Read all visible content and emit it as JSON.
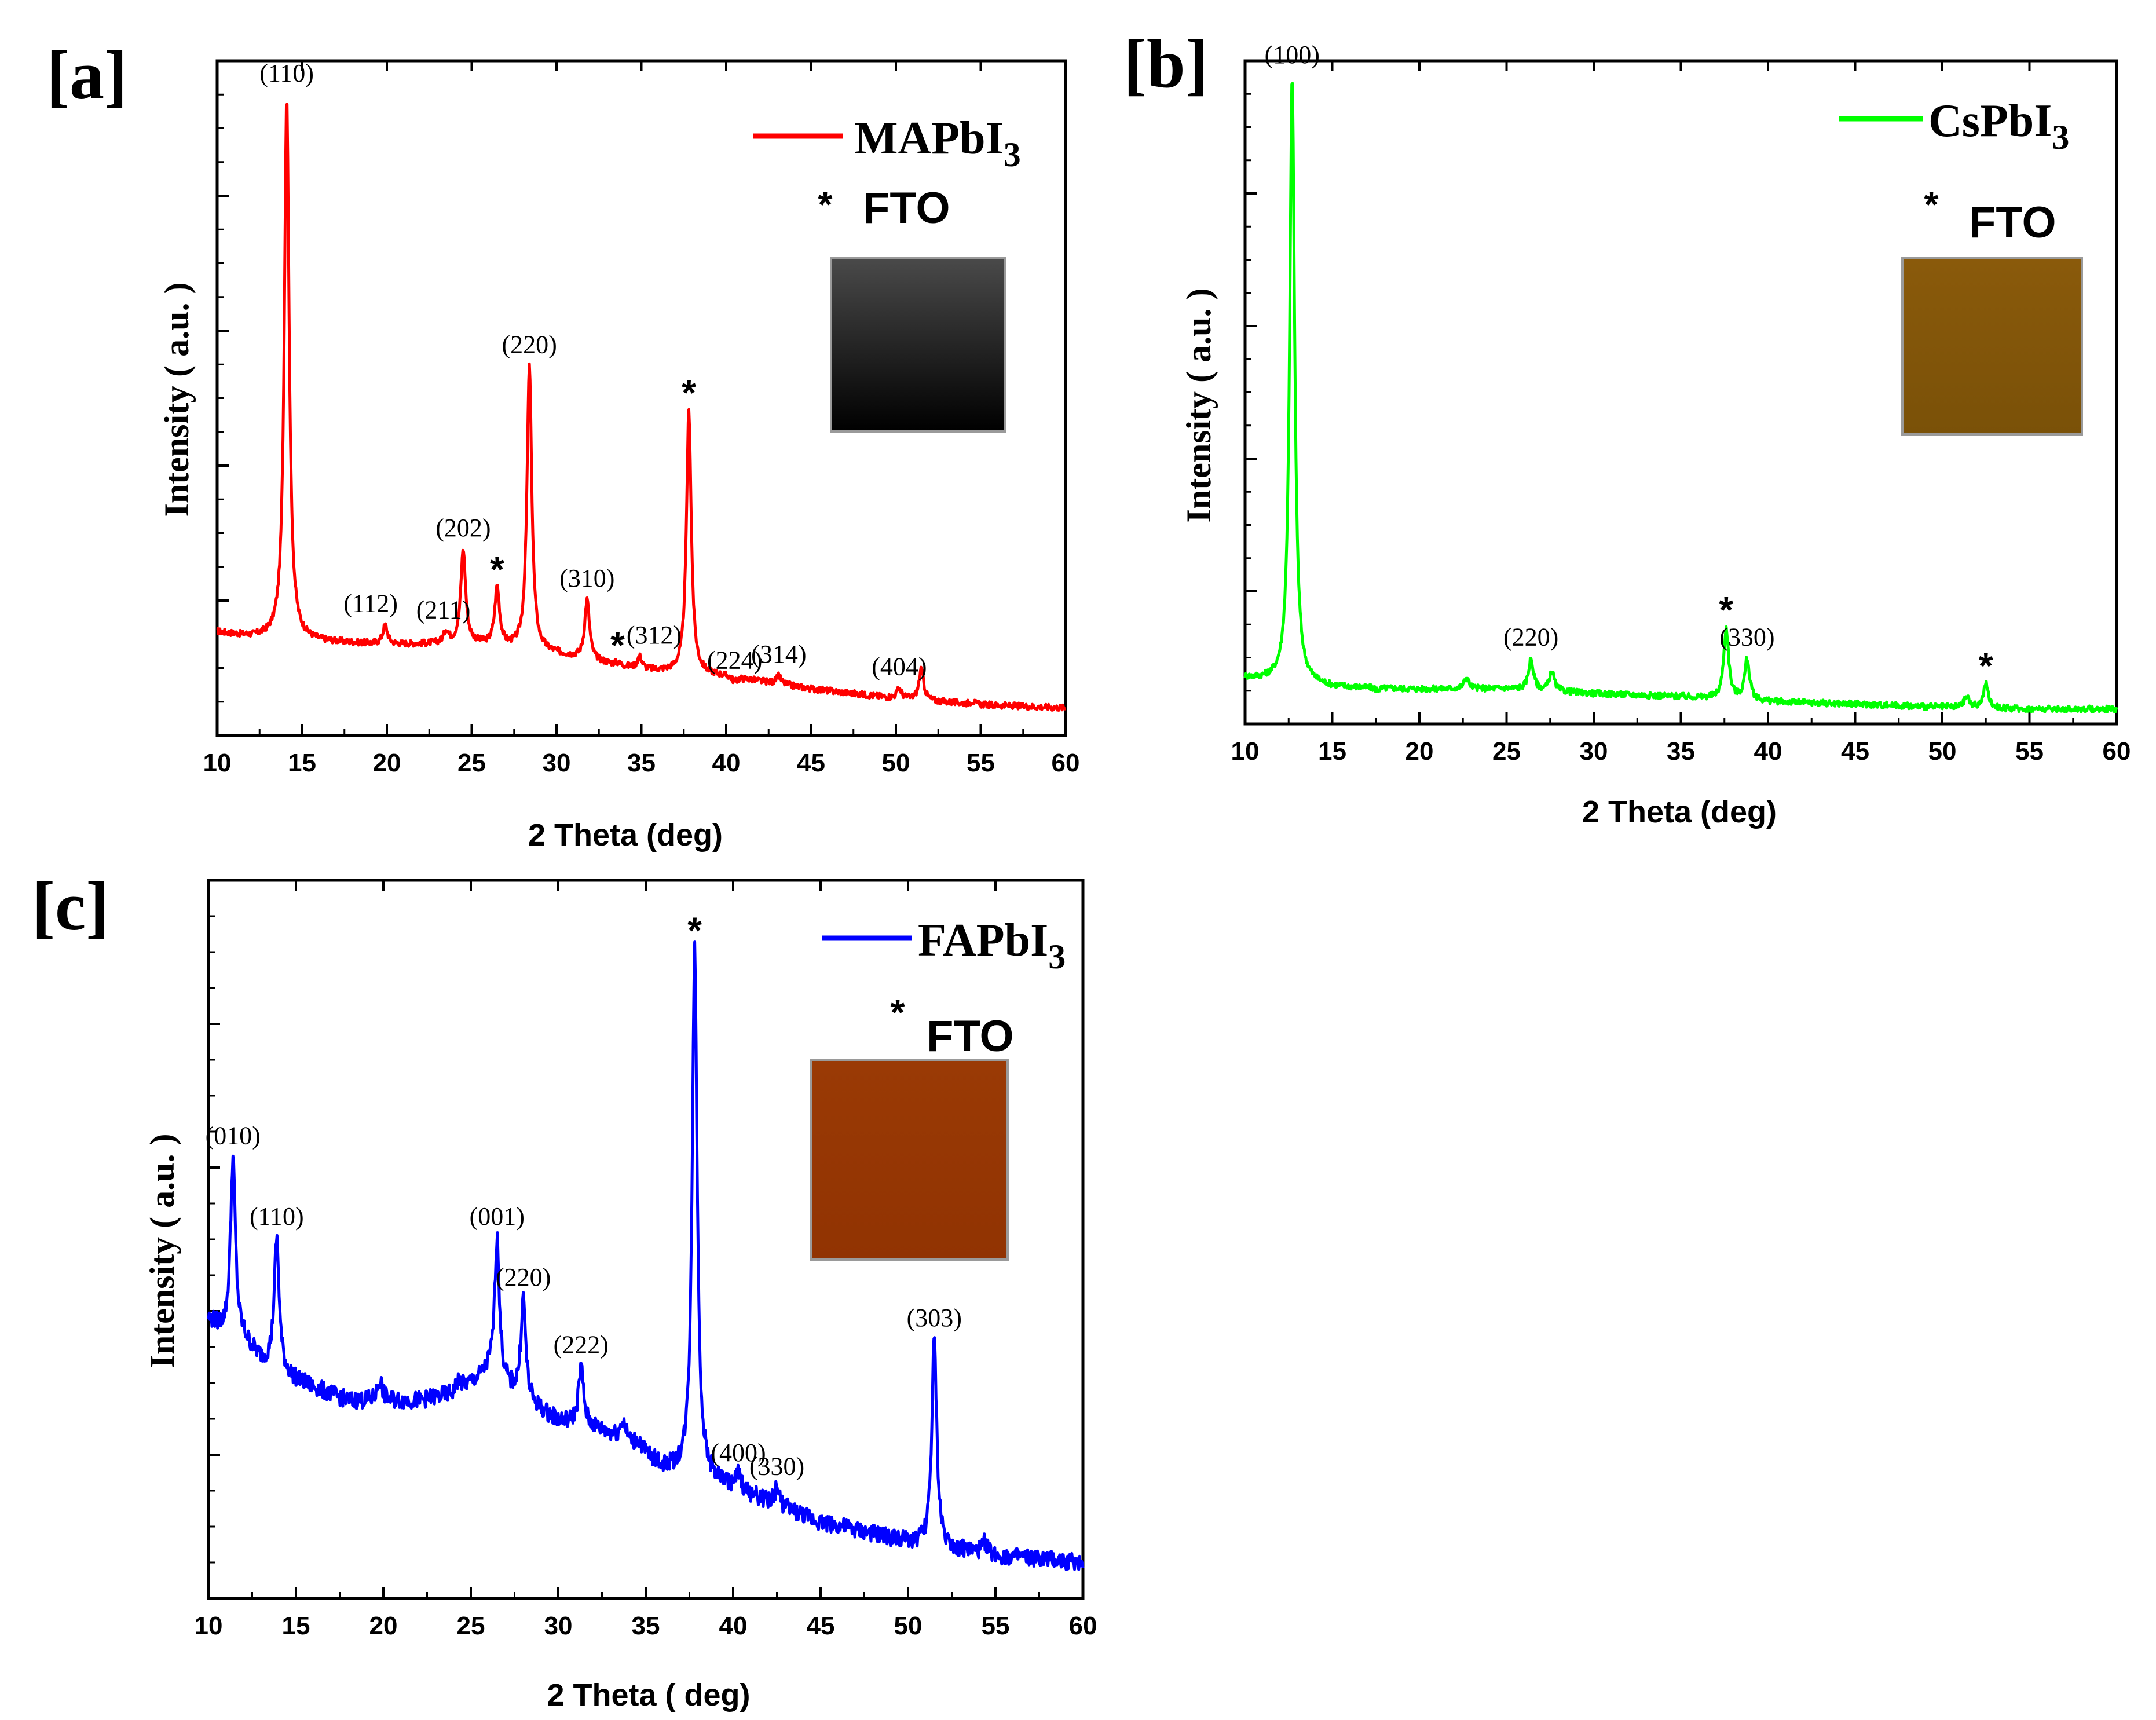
{
  "chart_data": [
    {
      "type": "line",
      "panel_label": "[a]",
      "xlabel": "2 Theta (deg)",
      "ylabel": "Intensity ( a.u. )",
      "xlim": [
        10,
        60
      ],
      "ylim": [
        0,
        100
      ],
      "x_ticks": [
        "10",
        "15",
        "20",
        "25",
        "30",
        "35",
        "40",
        "45",
        "50",
        "55",
        "60"
      ],
      "legend": {
        "name": "MAPbI",
        "subscript": "3",
        "color": "#ff0000",
        "position": "top-right"
      },
      "fto_note": "FTO",
      "fto_star": "*",
      "sample_swatch": {
        "color_top": "#4a4a4a",
        "color_bottom": "#000000"
      },
      "baseline": {
        "x": [
          10,
          12,
          13.5,
          16,
          20,
          25,
          30,
          35,
          40,
          45,
          50,
          55,
          60
        ],
        "y": [
          15,
          14.2,
          14,
          13.5,
          13,
          13.2,
          11.5,
          9,
          8,
          6,
          4.5,
          3.5,
          3
        ]
      },
      "peaks": [
        {
          "x": 14.1,
          "y": 100,
          "label": "(110)"
        },
        {
          "x": 19.9,
          "y": 16,
          "label": "(112)"
        },
        {
          "x": 23.5,
          "y": 15,
          "label": "(211)"
        },
        {
          "x": 24.5,
          "y": 28,
          "label": "(202)"
        },
        {
          "x": 26.5,
          "y": 22,
          "label": "*"
        },
        {
          "x": 28.4,
          "y": 57,
          "label": "(220)"
        },
        {
          "x": 31.8,
          "y": 20,
          "label": "(310)"
        },
        {
          "x": 33.6,
          "y": 10,
          "label": "*"
        },
        {
          "x": 34.9,
          "y": 11,
          "label": "(312)"
        },
        {
          "x": 37.8,
          "y": 50,
          "label": "*"
        },
        {
          "x": 40.5,
          "y": 7,
          "label": "(224)"
        },
        {
          "x": 43.1,
          "y": 8,
          "label": "(314)"
        },
        {
          "x": 50.2,
          "y": 6,
          "label": "(404)"
        },
        {
          "x": 51.5,
          "y": 9,
          "label": ""
        },
        {
          "x": 54.5,
          "y": 4,
          "label": ""
        }
      ]
    },
    {
      "type": "line",
      "panel_label": "[b]",
      "xlabel": "2 Theta (deg)",
      "ylabel": "Intensity ( a.u. )",
      "xlim": [
        10,
        60
      ],
      "ylim": [
        0,
        100
      ],
      "x_ticks": [
        "10",
        "15",
        "20",
        "25",
        "30",
        "35",
        "40",
        "45",
        "50",
        "55",
        "60"
      ],
      "legend": {
        "name": "CsPbI",
        "subscript": "3",
        "color": "#00ff00",
        "position": "top-right"
      },
      "fto_note": "FTO",
      "fto_star": "*",
      "sample_swatch": {
        "color_top": "#8a5a0b",
        "color_bottom": "#7a5108"
      },
      "baseline": {
        "x": [
          10,
          13,
          15,
          20,
          25,
          30,
          35,
          40,
          45,
          50,
          55,
          60
        ],
        "y": [
          6,
          5,
          4.5,
          4.2,
          4.3,
          3.5,
          3,
          2.2,
          1.8,
          1.3,
          1,
          1
        ]
      },
      "peaks": [
        {
          "x": 12.7,
          "y": 103,
          "label": "(100)"
        },
        {
          "x": 17.6,
          "y": 4,
          "label": ""
        },
        {
          "x": 22.7,
          "y": 6,
          "label": ""
        },
        {
          "x": 26.4,
          "y": 9,
          "label": "(220)"
        },
        {
          "x": 27.6,
          "y": 7,
          "label": ""
        },
        {
          "x": 37.6,
          "y": 14,
          "label": "*"
        },
        {
          "x": 38.8,
          "y": 9,
          "label": "(330)"
        },
        {
          "x": 51.4,
          "y": 3,
          "label": ""
        },
        {
          "x": 52.5,
          "y": 5,
          "label": "*"
        }
      ]
    },
    {
      "type": "line",
      "panel_label": "[c]",
      "xlabel": "2 Theta ( deg)",
      "ylabel": "Intensity ( a.u. )",
      "xlim": [
        10,
        60
      ],
      "ylim": [
        0,
        100
      ],
      "x_ticks": [
        "10",
        "15",
        "20",
        "25",
        "30",
        "35",
        "40",
        "45",
        "50",
        "55",
        "60"
      ],
      "legend": {
        "name": "FAPbI",
        "subscript": "3",
        "color": "#0000ff",
        "position": "top-right"
      },
      "fto_note": "FTO",
      "fto_star": "*",
      "sample_swatch": {
        "color_top": "#9a3a05",
        "color_bottom": "#913302"
      },
      "baseline": {
        "x": [
          10,
          11,
          12,
          13,
          15,
          18,
          20,
          22,
          24,
          26,
          28,
          30,
          32,
          34,
          36,
          38,
          40,
          42,
          45,
          50,
          55,
          60
        ],
        "y": [
          40,
          38,
          37,
          34,
          31,
          28,
          28,
          28,
          29,
          32,
          28,
          25,
          24,
          22,
          18,
          17,
          15,
          13,
          10,
          7,
          5,
          4
        ]
      },
      "peaks": [
        {
          "x": 11.4,
          "y": 64,
          "label": "(010)"
        },
        {
          "x": 13.9,
          "y": 52,
          "label": "(110)"
        },
        {
          "x": 19.8,
          "y": 31,
          "label": ""
        },
        {
          "x": 24.3,
          "y": 31,
          "label": ""
        },
        {
          "x": 26.5,
          "y": 52,
          "label": "(001)"
        },
        {
          "x": 28.0,
          "y": 43,
          "label": "(220)"
        },
        {
          "x": 31.3,
          "y": 33,
          "label": "(222)"
        },
        {
          "x": 33.7,
          "y": 25,
          "label": ""
        },
        {
          "x": 34.6,
          "y": 22,
          "label": ""
        },
        {
          "x": 37.8,
          "y": 95,
          "label": "*"
        },
        {
          "x": 40.3,
          "y": 17,
          "label": "(400)"
        },
        {
          "x": 42.5,
          "y": 15,
          "label": "(330)"
        },
        {
          "x": 51.5,
          "y": 37,
          "label": "(303)"
        },
        {
          "x": 54.4,
          "y": 7,
          "label": ""
        }
      ]
    }
  ]
}
